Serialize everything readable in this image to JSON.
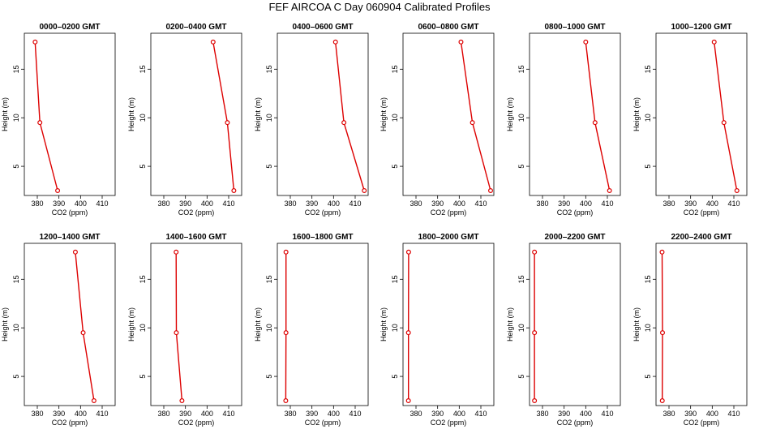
{
  "title": "FEF AIRCOA C  Day 060904  Calibrated Profiles",
  "colors": {
    "series": "#dd0000",
    "axes": "#000000",
    "background": "#ffffff"
  },
  "chart_data": [
    {
      "type": "line",
      "title": "0000–0200 GMT",
      "xlabel": "CO2 (ppm)",
      "ylabel": "Height (m)",
      "xlim": [
        374,
        416
      ],
      "ylim": [
        2,
        18.7
      ],
      "xticks": [
        380,
        390,
        400,
        410
      ],
      "yticks": [
        5,
        10,
        15
      ],
      "grid": false,
      "orientation": "vertical-profile",
      "x": [
        379.0,
        381.2,
        389.4
      ],
      "y": [
        17.8,
        9.5,
        2.5
      ]
    },
    {
      "type": "line",
      "title": "0200–0400 GMT",
      "xlabel": "CO2 (ppm)",
      "ylabel": "Height (m)",
      "xlim": [
        374,
        416
      ],
      "ylim": [
        2,
        18.7
      ],
      "xticks": [
        380,
        390,
        400,
        410
      ],
      "yticks": [
        5,
        10,
        15
      ],
      "grid": false,
      "orientation": "vertical-profile",
      "x": [
        402.8,
        409.4,
        412.4
      ],
      "y": [
        17.8,
        9.5,
        2.5
      ]
    },
    {
      "type": "line",
      "title": "0400–0600 GMT",
      "xlabel": "CO2 (ppm)",
      "ylabel": "Height (m)",
      "xlim": [
        374,
        416
      ],
      "ylim": [
        2,
        18.7
      ],
      "xticks": [
        380,
        390,
        400,
        410
      ],
      "yticks": [
        5,
        10,
        15
      ],
      "grid": false,
      "orientation": "vertical-profile",
      "x": [
        400.9,
        404.8,
        414.2
      ],
      "y": [
        17.8,
        9.5,
        2.5
      ]
    },
    {
      "type": "line",
      "title": "0600–0800 GMT",
      "xlabel": "CO2 (ppm)",
      "ylabel": "Height (m)",
      "xlim": [
        374,
        416
      ],
      "ylim": [
        2,
        18.7
      ],
      "xticks": [
        380,
        390,
        400,
        410
      ],
      "yticks": [
        5,
        10,
        15
      ],
      "grid": false,
      "orientation": "vertical-profile",
      "x": [
        400.8,
        406.1,
        414.5
      ],
      "y": [
        17.8,
        9.5,
        2.5
      ]
    },
    {
      "type": "line",
      "title": "0800–1000 GMT",
      "xlabel": "CO2 (ppm)",
      "ylabel": "Height (m)",
      "xlim": [
        374,
        416
      ],
      "ylim": [
        2,
        18.7
      ],
      "xticks": [
        380,
        390,
        400,
        410
      ],
      "yticks": [
        5,
        10,
        15
      ],
      "grid": false,
      "orientation": "vertical-profile",
      "x": [
        400.0,
        404.3,
        411.0
      ],
      "y": [
        17.8,
        9.5,
        2.5
      ]
    },
    {
      "type": "line",
      "title": "1000–1200 GMT",
      "xlabel": "CO2 (ppm)",
      "ylabel": "Height (m)",
      "xlim": [
        374,
        416
      ],
      "ylim": [
        2,
        18.7
      ],
      "xticks": [
        380,
        390,
        400,
        410
      ],
      "yticks": [
        5,
        10,
        15
      ],
      "grid": false,
      "orientation": "vertical-profile",
      "x": [
        400.9,
        405.4,
        411.4
      ],
      "y": [
        17.8,
        9.5,
        2.5
      ]
    },
    {
      "type": "line",
      "title": "1200–1400 GMT",
      "xlabel": "CO2 (ppm)",
      "ylabel": "Height (m)",
      "xlim": [
        374,
        416
      ],
      "ylim": [
        2,
        18.7
      ],
      "xticks": [
        380,
        390,
        400,
        410
      ],
      "yticks": [
        5,
        10,
        15
      ],
      "grid": false,
      "orientation": "vertical-profile",
      "x": [
        397.6,
        401.2,
        406.2
      ],
      "y": [
        17.8,
        9.5,
        2.5
      ]
    },
    {
      "type": "line",
      "title": "1400–1600 GMT",
      "xlabel": "CO2 (ppm)",
      "ylabel": "Height (m)",
      "xlim": [
        374,
        416
      ],
      "ylim": [
        2,
        18.7
      ],
      "xticks": [
        380,
        390,
        400,
        410
      ],
      "yticks": [
        5,
        10,
        15
      ],
      "grid": false,
      "orientation": "vertical-profile",
      "x": [
        385.7,
        385.8,
        388.4
      ],
      "y": [
        17.8,
        9.5,
        2.5
      ]
    },
    {
      "type": "line",
      "title": "1600–1800 GMT",
      "xlabel": "CO2 (ppm)",
      "ylabel": "Height (m)",
      "xlim": [
        374,
        416
      ],
      "ylim": [
        2,
        18.7
      ],
      "xticks": [
        380,
        390,
        400,
        410
      ],
      "yticks": [
        5,
        10,
        15
      ],
      "grid": false,
      "orientation": "vertical-profile",
      "x": [
        378.0,
        378.0,
        377.9
      ],
      "y": [
        17.8,
        9.5,
        2.5
      ]
    },
    {
      "type": "line",
      "title": "1800–2000 GMT",
      "xlabel": "CO2 (ppm)",
      "ylabel": "Height (m)",
      "xlim": [
        374,
        416
      ],
      "ylim": [
        2,
        18.7
      ],
      "xticks": [
        380,
        390,
        400,
        410
      ],
      "yticks": [
        5,
        10,
        15
      ],
      "grid": false,
      "orientation": "vertical-profile",
      "x": [
        376.6,
        376.5,
        376.5
      ],
      "y": [
        17.8,
        9.5,
        2.5
      ]
    },
    {
      "type": "line",
      "title": "2000–2200 GMT",
      "xlabel": "CO2 (ppm)",
      "ylabel": "Height (m)",
      "xlim": [
        374,
        416
      ],
      "ylim": [
        2,
        18.7
      ],
      "xticks": [
        380,
        390,
        400,
        410
      ],
      "yticks": [
        5,
        10,
        15
      ],
      "grid": false,
      "orientation": "vertical-profile",
      "x": [
        376.3,
        376.3,
        376.3
      ],
      "y": [
        17.8,
        9.5,
        2.5
      ]
    },
    {
      "type": "line",
      "title": "2200–2400 GMT",
      "xlabel": "CO2 (ppm)",
      "ylabel": "Height (m)",
      "xlim": [
        374,
        416
      ],
      "ylim": [
        2,
        18.7
      ],
      "xticks": [
        380,
        390,
        400,
        410
      ],
      "yticks": [
        5,
        10,
        15
      ],
      "grid": false,
      "orientation": "vertical-profile",
      "x": [
        376.8,
        377.0,
        376.9
      ],
      "y": [
        17.8,
        9.5,
        2.5
      ]
    }
  ]
}
